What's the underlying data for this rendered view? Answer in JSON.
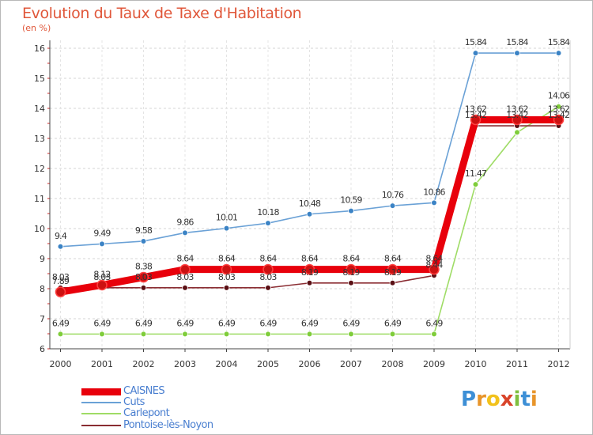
{
  "header": {
    "title": "Evolution du Taux de Taxe d'Habitation",
    "subtitle": "(en %)"
  },
  "logo": {
    "text": "Proxiti",
    "letters": [
      "P",
      "r",
      "o",
      "x",
      "i",
      "t",
      "i"
    ],
    "colors": [
      "#3d8fd6",
      "#e8952a",
      "#f2c21c",
      "#d9442a",
      "#7fbf3f",
      "#3d8fd6",
      "#e8952a"
    ]
  },
  "chart_data": {
    "type": "line",
    "title": "Evolution du Taux de Taxe d'Habitation",
    "subtitle": "(en %)",
    "xlabel": "",
    "ylabel": "",
    "x": [
      "2000",
      "2001",
      "2002",
      "2003",
      "2004",
      "2005",
      "2006",
      "2007",
      "2008",
      "2009",
      "2010",
      "2011",
      "2012"
    ],
    "ylim": [
      6,
      16
    ],
    "yticks": [
      "6",
      "7",
      "8",
      "9",
      "10",
      "11",
      "12",
      "13",
      "14",
      "15",
      "16"
    ],
    "grid": "horizontal dashed",
    "legend_position": "bottom-left",
    "series": [
      {
        "name": "CAISNES",
        "color": "#e8000b",
        "marker_color": "#cc1111",
        "values": [
          7.89,
          8.12,
          8.38,
          8.64,
          8.64,
          8.64,
          8.64,
          8.64,
          8.64,
          8.64,
          13.62,
          13.62,
          13.62
        ],
        "labels": [
          "7.89",
          "8.12",
          "8.38",
          "8.64",
          "8.64",
          "8.64",
          "8.64",
          "8.64",
          "8.64",
          "8.64",
          "13.62",
          "13.62",
          "13.62"
        ]
      },
      {
        "name": "Cuts",
        "color": "#6aa1d6",
        "marker_color": "#3b83c5",
        "values": [
          9.4,
          9.49,
          9.58,
          9.86,
          10.01,
          10.18,
          10.48,
          10.59,
          10.76,
          10.86,
          15.84,
          15.84,
          15.84
        ],
        "labels": [
          "9.4",
          "9.49",
          "9.58",
          "9.86",
          "10.01",
          "10.18",
          "10.48",
          "10.59",
          "10.76",
          "10.86",
          "15.84",
          "15.84",
          "15.84"
        ]
      },
      {
        "name": "Carlepont",
        "color": "#9fdc66",
        "marker_color": "#7fcd3a",
        "values": [
          6.49,
          6.49,
          6.49,
          6.49,
          6.49,
          6.49,
          6.49,
          6.49,
          6.49,
          6.49,
          11.47,
          13.2,
          14.06
        ],
        "labels": [
          "6.49",
          "6.49",
          "6.49",
          "6.49",
          "6.49",
          "6.49",
          "6.49",
          "6.49",
          "6.49",
          "6.49",
          "11.47",
          "",
          "14.06"
        ]
      },
      {
        "name": "Pontoise-lès-Noyon",
        "color": "#8a2c32",
        "marker_color": "#5a0f14",
        "values": [
          8.03,
          8.03,
          8.03,
          8.03,
          8.03,
          8.03,
          8.19,
          8.19,
          8.19,
          8.44,
          13.42,
          13.42,
          13.42
        ],
        "labels": [
          "8.03",
          "8.03",
          "8.03",
          "8.03",
          "8.03",
          "8.03",
          "8.19",
          "8.19",
          "8.19",
          "8.44",
          "13.42",
          "13.42",
          "13.42"
        ]
      }
    ]
  }
}
